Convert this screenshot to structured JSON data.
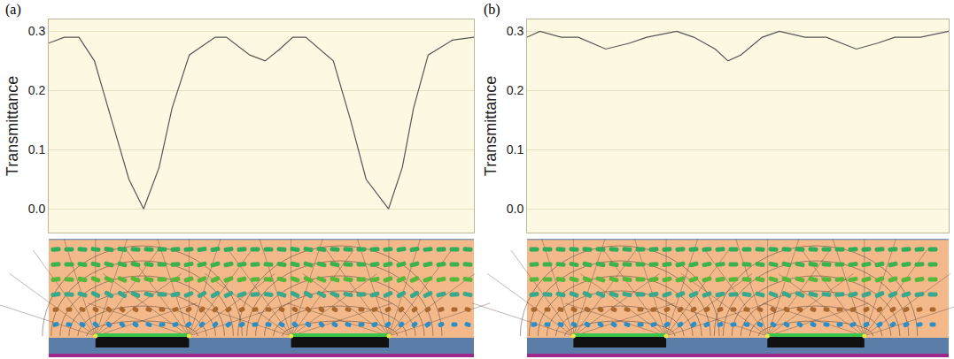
{
  "chart_data": [
    {
      "type": "line",
      "annotations": [
        "(a)"
      ],
      "ylabel": "Transmittance",
      "x": [
        0,
        18,
        35,
        53,
        73,
        93,
        110,
        128,
        143,
        163,
        193,
        206,
        233,
        251,
        268,
        283,
        298,
        330,
        350,
        368,
        394,
        410,
        423,
        440,
        468,
        493
      ],
      "values": [
        0.28,
        0.29,
        0.29,
        0.25,
        0.15,
        0.05,
        0.0,
        0.07,
        0.17,
        0.26,
        0.29,
        0.29,
        0.26,
        0.25,
        0.27,
        0.29,
        0.29,
        0.25,
        0.15,
        0.05,
        0.0,
        0.07,
        0.17,
        0.26,
        0.285,
        0.29
      ],
      "color": "#555555",
      "xlim": [
        0,
        493
      ],
      "ylim": [
        -0.04,
        0.32
      ],
      "yticks": [
        {
          "value": 0,
          "label": "0.0"
        },
        0.1,
        0.2,
        0.3
      ],
      "grid": true,
      "tick_labels": "y"
    },
    {
      "type": "line",
      "annotations": [
        "(b)"
      ],
      "ylabel": "Transmittance",
      "x": [
        0,
        15,
        40,
        60,
        92,
        120,
        140,
        175,
        195,
        220,
        235,
        250,
        275,
        295,
        325,
        350,
        385,
        410,
        430,
        460,
        493
      ],
      "values": [
        0.29,
        0.3,
        0.29,
        0.29,
        0.27,
        0.28,
        0.29,
        0.3,
        0.29,
        0.27,
        0.25,
        0.26,
        0.29,
        0.3,
        0.29,
        0.29,
        0.27,
        0.28,
        0.29,
        0.29,
        0.3
      ],
      "color": "#555555",
      "xlim": [
        0,
        493
      ],
      "ylim": [
        -0.04,
        0.32
      ],
      "yticks": [
        {
          "value": 0,
          "label": "0.0"
        },
        0.1,
        0.2,
        0.3
      ],
      "grid": true,
      "tick_labels": "y"
    }
  ]
}
